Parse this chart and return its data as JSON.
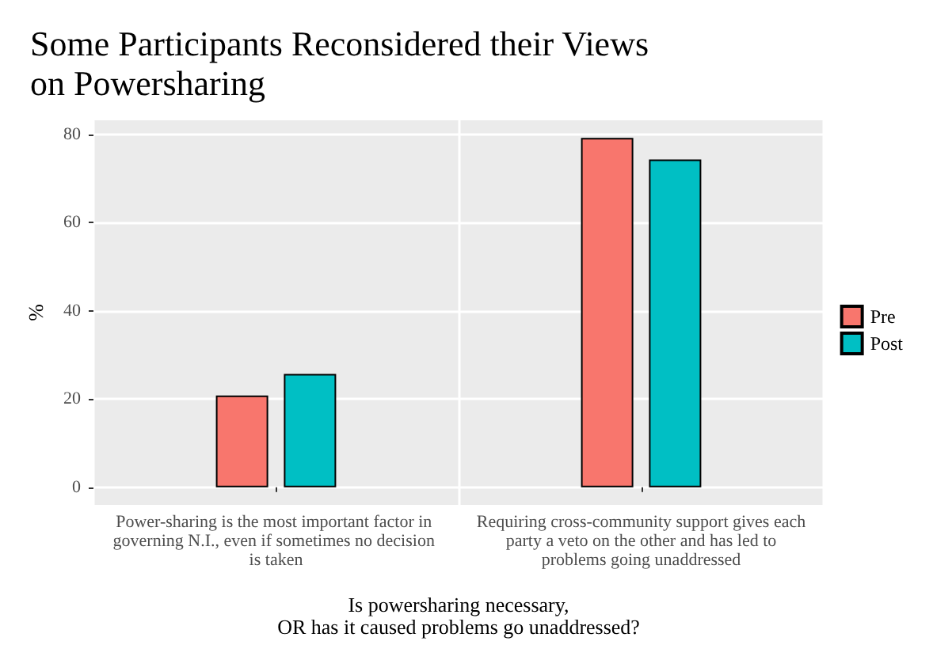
{
  "chart_data": {
    "type": "bar",
    "title": "Some Participants Reconsidered their Views\non Powersharing",
    "xlabel": "Is powersharing necessary,\nOR has it caused problems go unaddressed?",
    "ylabel": "%",
    "categories": [
      "Power-sharing is the most important factor in governing N.I., even if sometimes no decision is taken",
      "Requiring cross-community support gives each party a veto on the other and has led to problems going unaddressed"
    ],
    "series": [
      {
        "name": "Pre",
        "color": "#f8766d",
        "values": [
          20.8,
          79.2
        ]
      },
      {
        "name": "Post",
        "color": "#00bfc4",
        "values": [
          25.7,
          74.3
        ]
      }
    ],
    "ylim": [
      -4,
      83.2
    ],
    "yticks": [
      0,
      20,
      40,
      60,
      80
    ],
    "grid": true,
    "legend": "right"
  }
}
